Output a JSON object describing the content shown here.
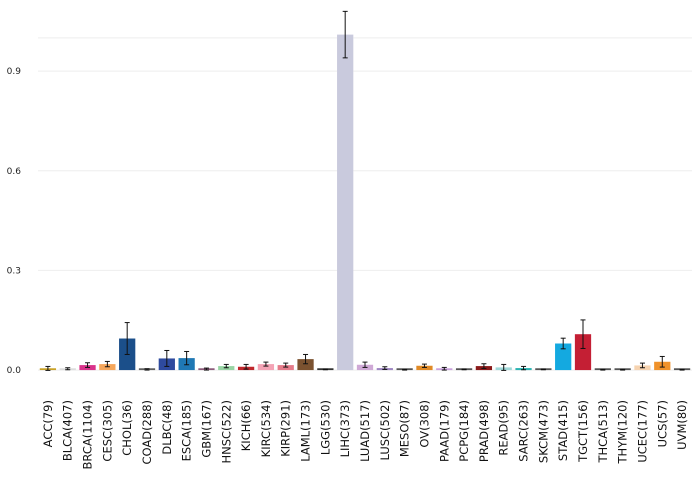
{
  "chart_data": {
    "type": "bar",
    "title": "",
    "xlabel": "",
    "ylabel": "",
    "ylim": [
      -0.06,
      1.06
    ],
    "yticks": [
      0.0,
      0.3,
      0.6,
      0.9
    ],
    "ytick_labels": [
      "0.0",
      "0.3",
      "0.6",
      "0.9"
    ],
    "grid": true,
    "legend": "none",
    "error_bars": true,
    "categories": [
      "ACC(79)",
      "BLCA(407)",
      "BRCA(1104)",
      "CESC(305)",
      "CHOL(36)",
      "COAD(288)",
      "DLBC(48)",
      "ESCA(185)",
      "GBM(167)",
      "HNSC(522)",
      "KICH(66)",
      "KIRC(534)",
      "KIRP(291)",
      "LAML(173)",
      "LGG(530)",
      "LIHC(373)",
      "LUAD(517)",
      "LUSC(502)",
      "MESO(87)",
      "OV(308)",
      "PAAD(179)",
      "PCPG(184)",
      "PRAD(498)",
      "READ(95)",
      "SARC(263)",
      "SKCM(473)",
      "STAD(415)",
      "TGCT(156)",
      "THCA(513)",
      "THYM(120)",
      "UCEC(177)",
      "UCS(57)",
      "UVM(80)"
    ],
    "values": [
      0.005,
      0.004,
      0.015,
      0.018,
      0.095,
      0.002,
      0.035,
      0.036,
      0.003,
      0.012,
      0.01,
      0.018,
      0.015,
      0.033,
      0.002,
      1.01,
      0.016,
      0.006,
      0.001,
      0.013,
      0.004,
      0.002,
      0.012,
      0.008,
      0.006,
      0.002,
      0.08,
      0.108,
      0.001,
      0.001,
      0.014,
      0.025,
      0.001
    ],
    "errors": [
      0.006,
      0.003,
      0.007,
      0.008,
      0.048,
      0.002,
      0.024,
      0.02,
      0.003,
      0.005,
      0.007,
      0.006,
      0.006,
      0.014,
      0.001,
      0.07,
      0.008,
      0.004,
      0.001,
      0.005,
      0.004,
      0.001,
      0.007,
      0.009,
      0.005,
      0.001,
      0.016,
      0.043,
      0.001,
      0.001,
      0.007,
      0.016,
      0.001
    ],
    "colors": [
      "#c9a227",
      "#dcdcdc",
      "#d9328a",
      "#f5a65b",
      "#1b4f8a",
      "#606060",
      "#2e4a9e",
      "#1f78b4",
      "#8c5b7a",
      "#98d4a4",
      "#c0282d",
      "#f4a3b5",
      "#e57b8a",
      "#7b5230",
      "#333333",
      "#c9cadd",
      "#cfa9d6",
      "#9e86c2",
      "#555555",
      "#e08a26",
      "#c9a0dc",
      "#555555",
      "#8a1a1a",
      "#9fd8d8",
      "#2bb3b1",
      "#555555",
      "#14a9e0",
      "#c41f34",
      "#555555",
      "#555555",
      "#f6d3b0",
      "#f0922a",
      "#555555"
    ]
  }
}
